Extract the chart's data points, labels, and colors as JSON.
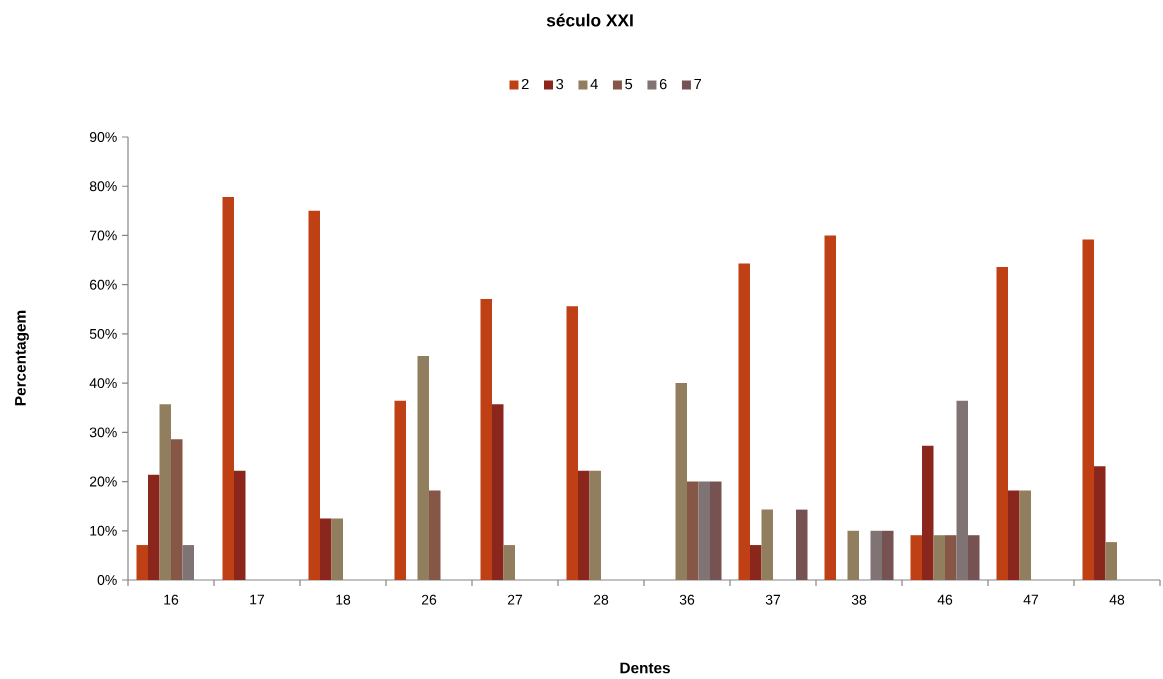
{
  "chart_data": {
    "type": "bar",
    "title": "século XXI",
    "xlabel": "Dentes",
    "ylabel": "Percentagem",
    "categories": [
      "16",
      "17",
      "18",
      "26",
      "27",
      "28",
      "36",
      "37",
      "38",
      "46",
      "47",
      "48"
    ],
    "series": [
      {
        "name": "2",
        "color": "#be4014",
        "values": [
          7.1,
          77.8,
          75.0,
          36.4,
          57.1,
          55.6,
          0,
          64.3,
          70.0,
          9.1,
          63.6,
          69.2
        ]
      },
      {
        "name": "3",
        "color": "#8b261c",
        "values": [
          21.4,
          22.2,
          12.5,
          0,
          35.7,
          22.2,
          0,
          7.1,
          0,
          27.3,
          18.2,
          23.1
        ]
      },
      {
        "name": "4",
        "color": "#917e5e",
        "values": [
          35.7,
          0,
          12.5,
          45.5,
          7.1,
          22.2,
          40.0,
          14.3,
          10.0,
          9.1,
          18.2,
          7.7
        ]
      },
      {
        "name": "5",
        "color": "#865746",
        "values": [
          28.6,
          0,
          0,
          18.2,
          0,
          0,
          20.0,
          0,
          0,
          9.1,
          0,
          0
        ]
      },
      {
        "name": "6",
        "color": "#807374",
        "values": [
          7.1,
          0,
          0,
          0,
          0,
          0,
          20.0,
          0,
          10.0,
          36.4,
          0,
          0
        ]
      },
      {
        "name": "7",
        "color": "#765252",
        "values": [
          0,
          0,
          0,
          0,
          0,
          0,
          20.0,
          14.3,
          10.0,
          9.1,
          0,
          0
        ]
      }
    ],
    "ylim": [
      0,
      90
    ],
    "yticks": [
      {
        "value": 0,
        "label": "0%"
      },
      {
        "value": 10,
        "label": "10%"
      },
      {
        "value": 20,
        "label": "20%"
      },
      {
        "value": 30,
        "label": "30%"
      },
      {
        "value": 40,
        "label": "40%"
      },
      {
        "value": 50,
        "label": "50%"
      },
      {
        "value": 60,
        "label": "60%"
      },
      {
        "value": 70,
        "label": "70%"
      },
      {
        "value": 80,
        "label": "80%"
      },
      {
        "value": 90,
        "label": "90%"
      }
    ],
    "legend": "top"
  }
}
